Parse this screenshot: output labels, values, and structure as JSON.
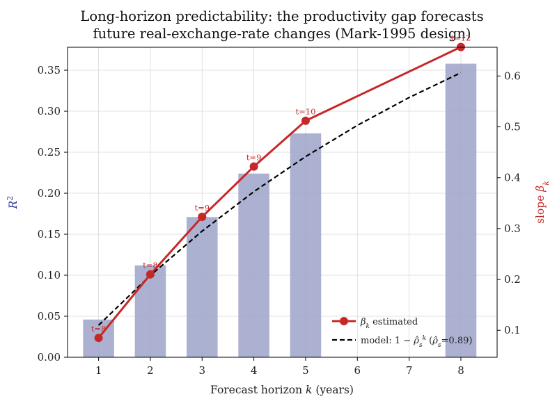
{
  "chart_data": {
    "type": "bar",
    "title_lines": [
      "Long-horizon predictability: the productivity gap forecasts",
      "future real-exchange-rate changes (Mark-1995 design)"
    ],
    "xlabel": "Forecast horizon k (years)",
    "ylabel_left": "R²",
    "ylabel_right": "slope βk",
    "x_ticks": [
      1,
      2,
      3,
      4,
      5,
      6,
      7,
      8
    ],
    "x_range": [
      0.4,
      8.7
    ],
    "left_axis": {
      "ylim": [
        0,
        0.378
      ],
      "ticks": [
        0.0,
        0.05,
        0.1,
        0.15,
        0.2,
        0.25,
        0.3,
        0.35
      ]
    },
    "right_axis": {
      "ylim": [
        0.047,
        0.6565
      ],
      "ticks": [
        0.1,
        0.2,
        0.3,
        0.4,
        0.5,
        0.6
      ]
    },
    "grid": true,
    "bars": {
      "name": "R²",
      "axis": "left",
      "x": [
        1,
        2,
        3,
        4,
        5,
        8
      ],
      "values": [
        0.046,
        0.112,
        0.171,
        0.224,
        0.273,
        0.358
      ]
    },
    "series": [
      {
        "name": "βk estimated",
        "type": "line-markers",
        "axis": "right",
        "x": [
          1,
          2,
          3,
          4,
          5,
          8
        ],
        "values": [
          0.085,
          0.21,
          0.323,
          0.422,
          0.512,
          0.657
        ]
      },
      {
        "name": "model: 1 − ρ̂s^k (ρ̂s=0.89)",
        "type": "dashed-line",
        "axis": "right",
        "x": [
          1,
          2,
          3,
          4,
          5,
          6,
          7,
          8
        ],
        "values": [
          0.11,
          0.2079,
          0.295,
          0.3726,
          0.4416,
          0.503,
          0.5577,
          0.6064
        ]
      }
    ],
    "annotations": [
      "t=8",
      "t=8",
      "t=9",
      "t=9",
      "t=10",
      "t=12"
    ],
    "legend": {
      "location": "lower-right",
      "entries": [
        "βk estimated",
        "model: 1 − ρ̂s^k (ρ̂s=0.89)"
      ]
    },
    "colors": {
      "bars": "#9ea3c9",
      "estimated_line": "#c62828",
      "model_line": "#000000",
      "annotations": "#c62828",
      "left_axis_label": "#283593",
      "right_axis_label": "#c62828"
    }
  }
}
